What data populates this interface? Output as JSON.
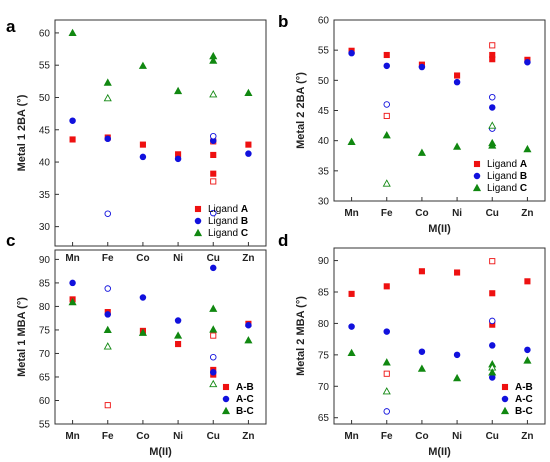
{
  "colors": {
    "A": "#ee1111",
    "B": "#1111dd",
    "C": "#118811",
    "A-B": "#ee1111",
    "A-C": "#1111dd",
    "B-C": "#118811"
  },
  "chart_data": [
    {
      "type": "scatter",
      "panel_label": "a",
      "ylabel": "Metal 1 2BA (°)",
      "xlabel": "",
      "categories": [
        "Mn",
        "Fe",
        "Co",
        "Ni",
        "Cu",
        "Zn"
      ],
      "ylim": [
        27,
        62
      ],
      "yticks": [
        30,
        35,
        40,
        45,
        50,
        55,
        60
      ],
      "legend_position": "bottom-right",
      "legend": [
        {
          "key": "A",
          "prefix": "Ligand",
          "label": "A"
        },
        {
          "key": "B",
          "prefix": "Ligand",
          "label": "B"
        },
        {
          "key": "C",
          "prefix": "Ligand",
          "label": "C"
        }
      ],
      "points": [
        {
          "series": "A",
          "x": "Mn",
          "y": 43.5,
          "filled": true
        },
        {
          "series": "A",
          "x": "Fe",
          "y": 43.8,
          "filled": true
        },
        {
          "series": "A",
          "x": "Co",
          "y": 42.7,
          "filled": true
        },
        {
          "series": "A",
          "x": "Ni",
          "y": 41.2,
          "filled": true
        },
        {
          "series": "A",
          "x": "Cu",
          "y": 41.1,
          "filled": true
        },
        {
          "series": "A",
          "x": "Cu",
          "y": 38.2,
          "filled": true
        },
        {
          "series": "A",
          "x": "Cu",
          "y": 37.0,
          "filled": false
        },
        {
          "series": "A",
          "x": "Cu",
          "y": 43.2,
          "filled": false
        },
        {
          "series": "A",
          "x": "Zn",
          "y": 42.7,
          "filled": true
        },
        {
          "series": "B",
          "x": "Mn",
          "y": 46.4,
          "filled": true
        },
        {
          "series": "B",
          "x": "Fe",
          "y": 43.6,
          "filled": true
        },
        {
          "series": "B",
          "x": "Fe",
          "y": 32.0,
          "filled": false
        },
        {
          "series": "B",
          "x": "Co",
          "y": 40.8,
          "filled": true
        },
        {
          "series": "B",
          "x": "Ni",
          "y": 40.5,
          "filled": true
        },
        {
          "series": "B",
          "x": "Cu",
          "y": 43.3,
          "filled": true
        },
        {
          "series": "B",
          "x": "Cu",
          "y": 44.0,
          "filled": false
        },
        {
          "series": "B",
          "x": "Cu",
          "y": 32.1,
          "filled": false
        },
        {
          "series": "B",
          "x": "Zn",
          "y": 41.3,
          "filled": true
        },
        {
          "series": "C",
          "x": "Mn",
          "y": 60.0,
          "filled": true
        },
        {
          "series": "C",
          "x": "Fe",
          "y": 52.3,
          "filled": true
        },
        {
          "series": "C",
          "x": "Fe",
          "y": 49.9,
          "filled": false
        },
        {
          "series": "C",
          "x": "Co",
          "y": 54.9,
          "filled": true
        },
        {
          "series": "C",
          "x": "Ni",
          "y": 51.0,
          "filled": true
        },
        {
          "series": "C",
          "x": "Cu",
          "y": 56.4,
          "filled": true
        },
        {
          "series": "C",
          "x": "Cu",
          "y": 55.7,
          "filled": true
        },
        {
          "series": "C",
          "x": "Cu",
          "y": 50.5,
          "filled": false
        },
        {
          "series": "C",
          "x": "Zn",
          "y": 50.7,
          "filled": true
        }
      ]
    },
    {
      "type": "scatter",
      "panel_label": "b",
      "ylabel": "Metal 2 2BA (°)",
      "xlabel": "M(II)",
      "categories": [
        "Mn",
        "Fe",
        "Co",
        "Ni",
        "Cu",
        "Zn"
      ],
      "ylim": [
        30,
        60
      ],
      "yticks": [
        30,
        35,
        40,
        45,
        50,
        55,
        60
      ],
      "legend_position": "bottom-right",
      "legend": [
        {
          "key": "A",
          "prefix": "Ligand",
          "label": "A"
        },
        {
          "key": "B",
          "prefix": "Ligand",
          "label": "B"
        },
        {
          "key": "C",
          "prefix": "Ligand",
          "label": "C"
        }
      ],
      "points": [
        {
          "series": "A",
          "x": "Mn",
          "y": 54.9,
          "filled": true
        },
        {
          "series": "A",
          "x": "Fe",
          "y": 54.2,
          "filled": true
        },
        {
          "series": "A",
          "x": "Fe",
          "y": 44.1,
          "filled": false
        },
        {
          "series": "A",
          "x": "Co",
          "y": 52.6,
          "filled": true
        },
        {
          "series": "A",
          "x": "Ni",
          "y": 50.8,
          "filled": true
        },
        {
          "series": "A",
          "x": "Cu",
          "y": 55.8,
          "filled": false
        },
        {
          "series": "A",
          "x": "Cu",
          "y": 54.2,
          "filled": true
        },
        {
          "series": "A",
          "x": "Cu",
          "y": 53.5,
          "filled": true
        },
        {
          "series": "A",
          "x": "Zn",
          "y": 53.4,
          "filled": true
        },
        {
          "series": "B",
          "x": "Mn",
          "y": 54.5,
          "filled": true
        },
        {
          "series": "B",
          "x": "Fe",
          "y": 52.4,
          "filled": true
        },
        {
          "series": "B",
          "x": "Fe",
          "y": 46.0,
          "filled": false
        },
        {
          "series": "B",
          "x": "Co",
          "y": 52.2,
          "filled": true
        },
        {
          "series": "B",
          "x": "Ni",
          "y": 49.7,
          "filled": true
        },
        {
          "series": "B",
          "x": "Cu",
          "y": 47.2,
          "filled": false
        },
        {
          "series": "B",
          "x": "Cu",
          "y": 45.5,
          "filled": true
        },
        {
          "series": "B",
          "x": "Cu",
          "y": 42.0,
          "filled": false
        },
        {
          "series": "B",
          "x": "Zn",
          "y": 53.0,
          "filled": true
        },
        {
          "series": "C",
          "x": "Mn",
          "y": 39.8,
          "filled": true
        },
        {
          "series": "C",
          "x": "Fe",
          "y": 40.9,
          "filled": true
        },
        {
          "series": "C",
          "x": "Fe",
          "y": 32.9,
          "filled": false
        },
        {
          "series": "C",
          "x": "Co",
          "y": 38.0,
          "filled": true
        },
        {
          "series": "C",
          "x": "Ni",
          "y": 39.0,
          "filled": true
        },
        {
          "series": "C",
          "x": "Cu",
          "y": 42.5,
          "filled": false
        },
        {
          "series": "C",
          "x": "Cu",
          "y": 39.6,
          "filled": true
        },
        {
          "series": "C",
          "x": "Cu",
          "y": 39.2,
          "filled": true
        },
        {
          "series": "C",
          "x": "Zn",
          "y": 38.6,
          "filled": true
        }
      ]
    },
    {
      "type": "scatter",
      "panel_label": "c",
      "ylabel": "Metal 1 MBA (°)",
      "xlabel": "M(II)",
      "categories": [
        "Mn",
        "Fe",
        "Co",
        "Ni",
        "Cu",
        "Zn"
      ],
      "ylim": [
        55,
        92
      ],
      "yticks": [
        55,
        60,
        65,
        70,
        75,
        80,
        85,
        90
      ],
      "legend_position": "bottom-right",
      "legend": [
        {
          "key": "A-B",
          "prefix": "",
          "label": "A-B"
        },
        {
          "key": "A-C",
          "prefix": "",
          "label": "A-C"
        },
        {
          "key": "B-C",
          "prefix": "",
          "label": "B-C"
        }
      ],
      "points": [
        {
          "series": "A-B",
          "x": "Mn",
          "y": 81.5,
          "filled": true
        },
        {
          "series": "A-B",
          "x": "Fe",
          "y": 78.8,
          "filled": true
        },
        {
          "series": "A-B",
          "x": "Fe",
          "y": 59.0,
          "filled": false
        },
        {
          "series": "A-B",
          "x": "Co",
          "y": 74.8,
          "filled": true
        },
        {
          "series": "A-B",
          "x": "Ni",
          "y": 72.0,
          "filled": true
        },
        {
          "series": "A-B",
          "x": "Cu",
          "y": 73.8,
          "filled": false
        },
        {
          "series": "A-B",
          "x": "Cu",
          "y": 66.5,
          "filled": true
        },
        {
          "series": "A-B",
          "x": "Cu",
          "y": 65.5,
          "filled": true
        },
        {
          "series": "A-B",
          "x": "Zn",
          "y": 76.3,
          "filled": true
        },
        {
          "series": "A-C",
          "x": "Mn",
          "y": 85.0,
          "filled": true
        },
        {
          "series": "A-C",
          "x": "Fe",
          "y": 78.3,
          "filled": true
        },
        {
          "series": "A-C",
          "x": "Fe",
          "y": 83.8,
          "filled": false
        },
        {
          "series": "A-C",
          "x": "Co",
          "y": 81.9,
          "filled": true
        },
        {
          "series": "A-C",
          "x": "Ni",
          "y": 77.0,
          "filled": true
        },
        {
          "series": "A-C",
          "x": "Cu",
          "y": 88.2,
          "filled": true
        },
        {
          "series": "A-C",
          "x": "Cu",
          "y": 69.2,
          "filled": false
        },
        {
          "series": "A-C",
          "x": "Cu",
          "y": 66.0,
          "filled": true
        },
        {
          "series": "A-C",
          "x": "Zn",
          "y": 76.0,
          "filled": true
        },
        {
          "series": "B-C",
          "x": "Mn",
          "y": 80.9,
          "filled": true
        },
        {
          "series": "B-C",
          "x": "Fe",
          "y": 75.0,
          "filled": true
        },
        {
          "series": "B-C",
          "x": "Fe",
          "y": 71.5,
          "filled": false
        },
        {
          "series": "B-C",
          "x": "Co",
          "y": 74.4,
          "filled": true
        },
        {
          "series": "B-C",
          "x": "Ni",
          "y": 73.8,
          "filled": true
        },
        {
          "series": "B-C",
          "x": "Cu",
          "y": 79.5,
          "filled": true
        },
        {
          "series": "B-C",
          "x": "Cu",
          "y": 75.1,
          "filled": true
        },
        {
          "series": "B-C",
          "x": "Cu",
          "y": 63.5,
          "filled": false
        },
        {
          "series": "B-C",
          "x": "Zn",
          "y": 72.8,
          "filled": true
        }
      ]
    },
    {
      "type": "scatter",
      "panel_label": "d",
      "ylabel": "Metal 2 MBA (°)",
      "xlabel": "M(II)",
      "categories": [
        "Mn",
        "Fe",
        "Co",
        "Ni",
        "Cu",
        "Zn"
      ],
      "ylim": [
        64,
        92
      ],
      "yticks": [
        65,
        70,
        75,
        80,
        85,
        90
      ],
      "legend_position": "bottom-right",
      "legend": [
        {
          "key": "A-B",
          "prefix": "",
          "label": "A-B"
        },
        {
          "key": "A-C",
          "prefix": "",
          "label": "A-C"
        },
        {
          "key": "B-C",
          "prefix": "",
          "label": "B-C"
        }
      ],
      "points": [
        {
          "series": "A-B",
          "x": "Mn",
          "y": 84.7,
          "filled": true
        },
        {
          "series": "A-B",
          "x": "Fe",
          "y": 85.9,
          "filled": true
        },
        {
          "series": "A-B",
          "x": "Fe",
          "y": 72.0,
          "filled": false
        },
        {
          "series": "A-B",
          "x": "Co",
          "y": 88.3,
          "filled": true
        },
        {
          "series": "A-B",
          "x": "Ni",
          "y": 88.1,
          "filled": true
        },
        {
          "series": "A-B",
          "x": "Cu",
          "y": 89.9,
          "filled": false
        },
        {
          "series": "A-B",
          "x": "Cu",
          "y": 84.8,
          "filled": true
        },
        {
          "series": "A-B",
          "x": "Cu",
          "y": 79.8,
          "filled": true
        },
        {
          "series": "A-B",
          "x": "Zn",
          "y": 86.7,
          "filled": true
        },
        {
          "series": "A-C",
          "x": "Mn",
          "y": 79.5,
          "filled": true
        },
        {
          "series": "A-C",
          "x": "Fe",
          "y": 78.7,
          "filled": true
        },
        {
          "series": "A-C",
          "x": "Fe",
          "y": 66.0,
          "filled": false
        },
        {
          "series": "A-C",
          "x": "Co",
          "y": 75.5,
          "filled": true
        },
        {
          "series": "A-C",
          "x": "Ni",
          "y": 75.0,
          "filled": true
        },
        {
          "series": "A-C",
          "x": "Cu",
          "y": 80.4,
          "filled": false
        },
        {
          "series": "A-C",
          "x": "Cu",
          "y": 76.5,
          "filled": true
        },
        {
          "series": "A-C",
          "x": "Cu",
          "y": 71.4,
          "filled": true
        },
        {
          "series": "A-C",
          "x": "Zn",
          "y": 75.8,
          "filled": true
        },
        {
          "series": "B-C",
          "x": "Mn",
          "y": 75.3,
          "filled": true
        },
        {
          "series": "B-C",
          "x": "Fe",
          "y": 73.8,
          "filled": true
        },
        {
          "series": "B-C",
          "x": "Fe",
          "y": 69.2,
          "filled": false
        },
        {
          "series": "B-C",
          "x": "Co",
          "y": 72.8,
          "filled": true
        },
        {
          "series": "B-C",
          "x": "Ni",
          "y": 71.3,
          "filled": true
        },
        {
          "series": "B-C",
          "x": "Cu",
          "y": 73.5,
          "filled": true
        },
        {
          "series": "B-C",
          "x": "Cu",
          "y": 73.0,
          "filled": false
        },
        {
          "series": "B-C",
          "x": "Cu",
          "y": 72.2,
          "filled": true
        },
        {
          "series": "B-C",
          "x": "Zn",
          "y": 74.1,
          "filled": true
        }
      ]
    }
  ]
}
